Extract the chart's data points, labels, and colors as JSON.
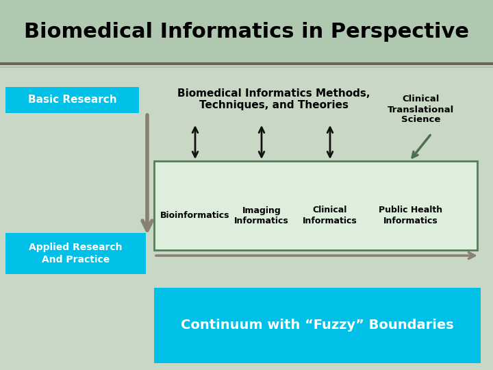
{
  "title": "Biomedical Informatics in Perspective",
  "bg_color": "#c8d8c4",
  "title_bg": "#b0c8b0",
  "basic_research_label": "Basic Research",
  "applied_research_label": "Applied Research\nAnd Practice",
  "bi_methods_label": "Biomedical Informatics Methods,\nTechniques, and Theories",
  "clinical_trans_label": "Clinical\nTranslational\nScience",
  "continuum_label": "Continuum with “Fuzzy” Boundaries",
  "box_labels": [
    "Bioinformatics",
    "Imaging\nInformatics",
    "Clinical\nInformatics",
    "Public Health\nInformatics"
  ],
  "cyan_color": "#00c0e8",
  "arrow_color_black": "#111111",
  "arrow_color_gray": "#888070",
  "arrow_color_green": "#4a7050",
  "box_bg": "#ddeedd",
  "box_border": "#5a7a5a",
  "sep_line_dark": "#666655",
  "sep_line_light": "#aabbaa"
}
